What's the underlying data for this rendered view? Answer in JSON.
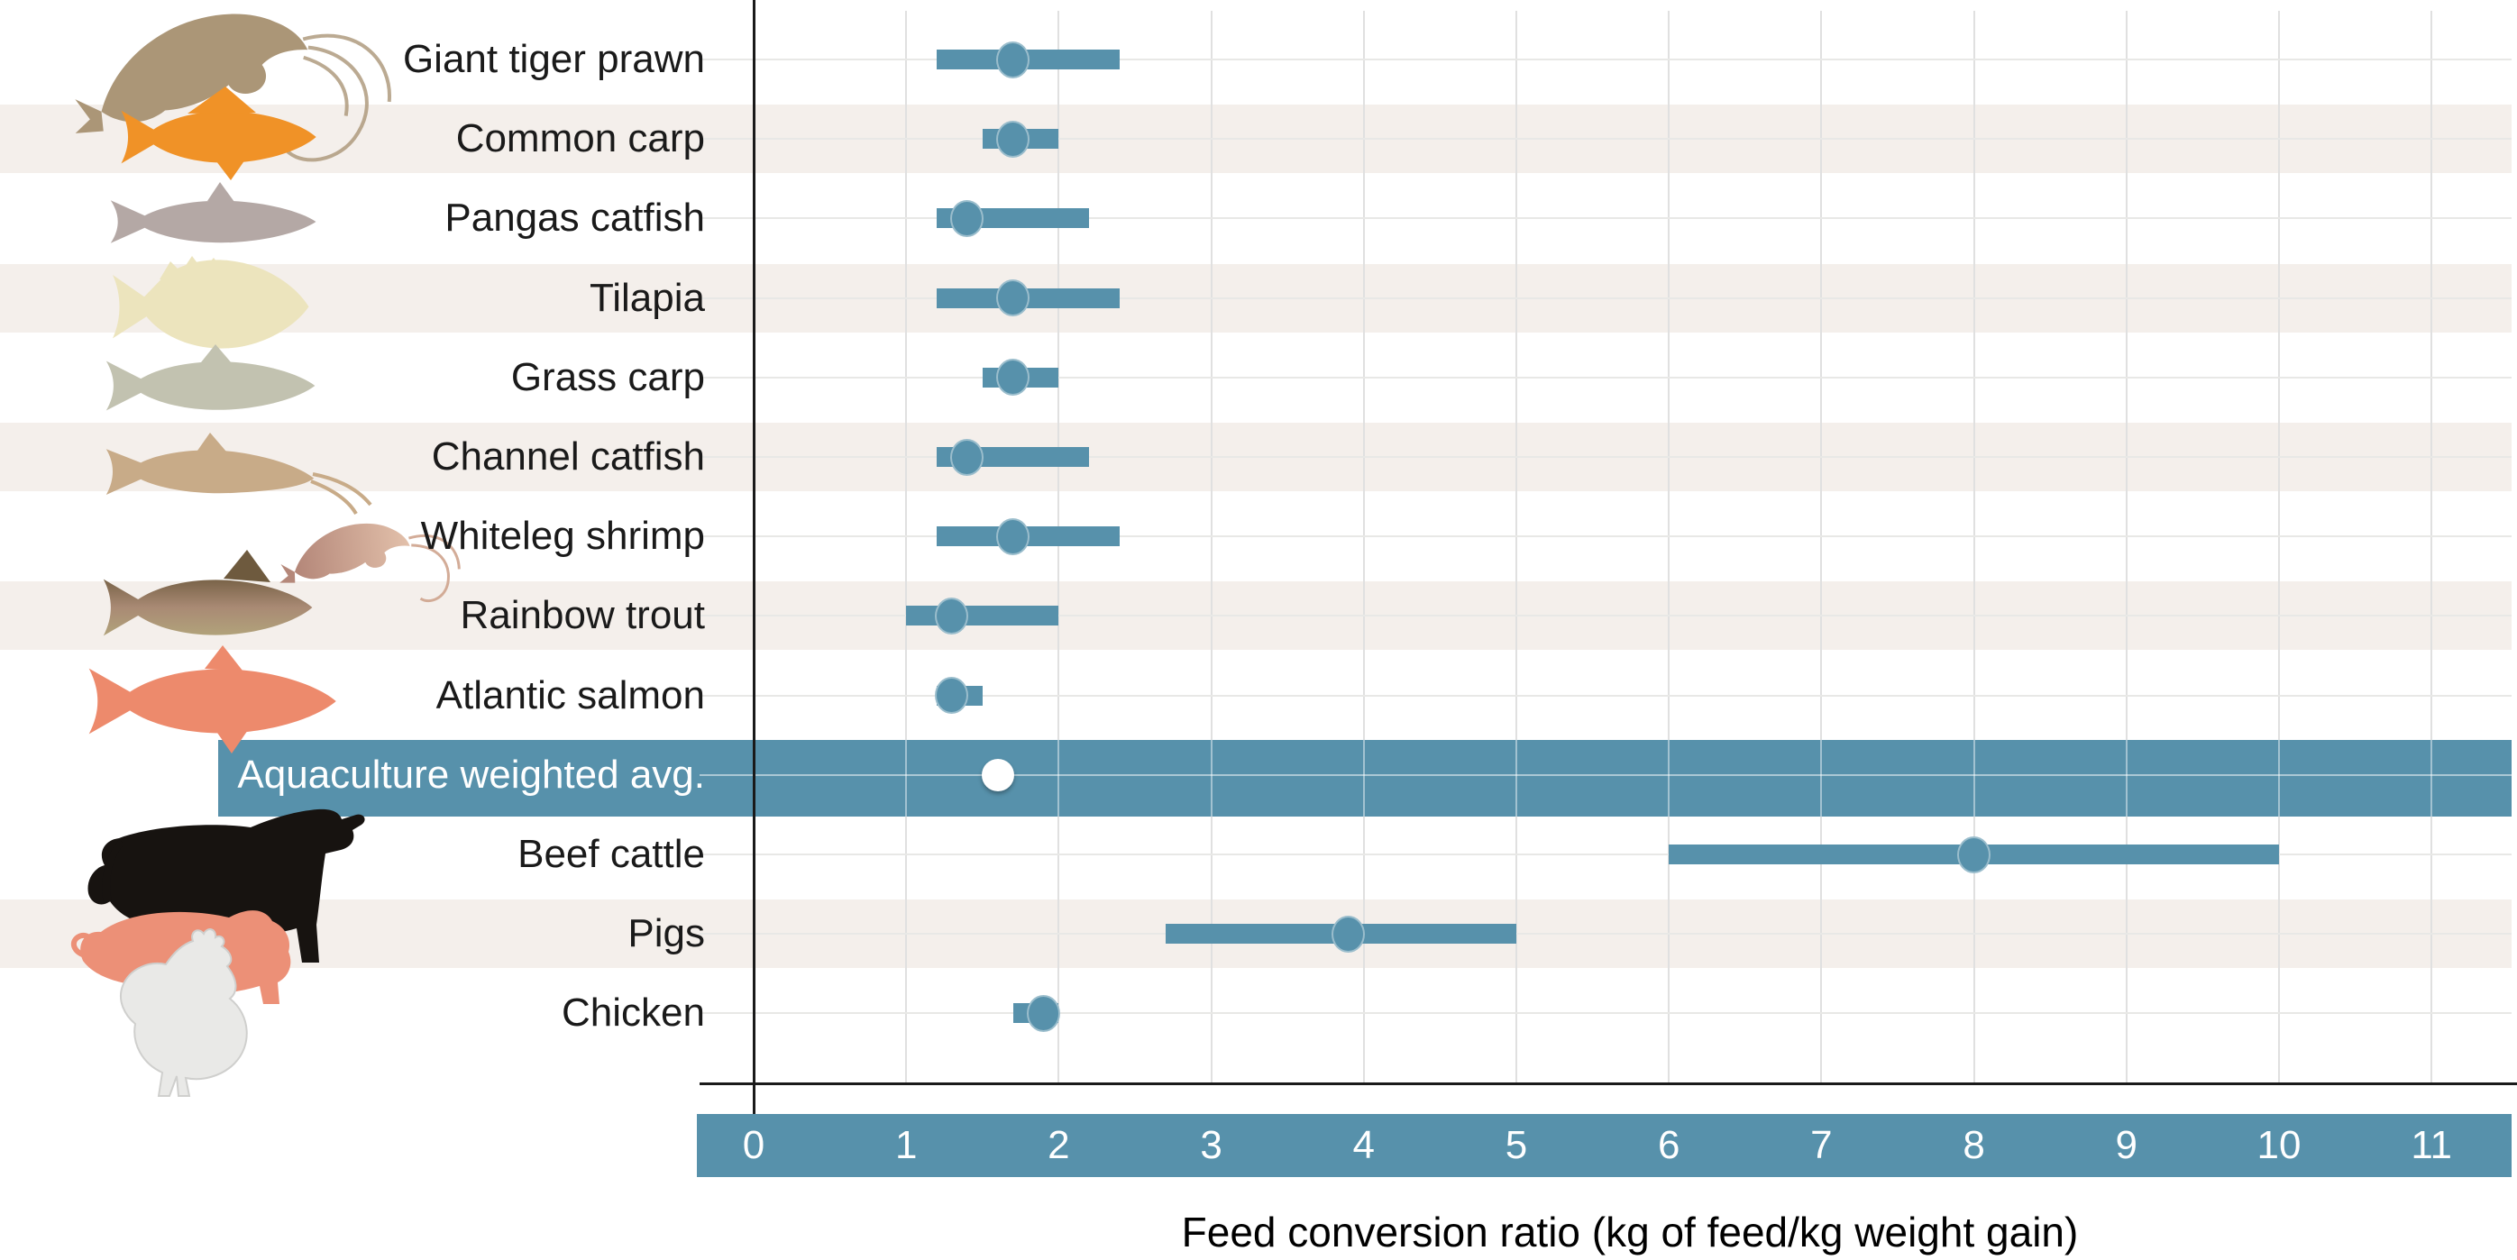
{
  "colors": {
    "accent_blue": "#5791ab",
    "stripe_bg": "#f4efeb",
    "grid_line": "#e0e0e0",
    "row_line": "#e8e8e6",
    "axis_line": "#1a1a1a",
    "label_text": "#1a1a1a",
    "band_label_text": "#ffffff",
    "tick_text": "#ffffff",
    "summary_dot": "#ffffff",
    "animal_colors": {
      "giant_tiger_prawn": "#ab9677",
      "common_carp": "#f09227",
      "pangas_catfish": "#b4a8a5",
      "tilapia": "#ece4bd",
      "grass_carp": "#c2c2b0",
      "channel_catfish": "#c8ab88",
      "whiteleg_shrimp": "#d4a38c",
      "rainbow_trout": "#a1875f",
      "atlantic_salmon": "#ed8a6c",
      "beef_cattle": "#171310",
      "pig": "#ec9077",
      "chicken": "#e9e9e7"
    }
  },
  "axis": {
    "tick_labels": [
      "0",
      "1",
      "2",
      "3",
      "4",
      "5",
      "6",
      "7",
      "8",
      "9",
      "10",
      "11"
    ],
    "xlabel": "Feed conversion ratio (kg of feed/kg weight gain)"
  },
  "chart_data": {
    "type": "dot-range",
    "title": "",
    "xlabel": "Feed conversion ratio (kg of feed/kg weight gain)",
    "ylabel": "",
    "x_ticks": [
      0,
      1,
      2,
      3,
      4,
      5,
      6,
      7,
      8,
      9,
      10,
      11
    ],
    "xlim": [
      -0.4,
      11.5
    ],
    "grid": "vertical gridlines at each integer; light horizontal line per row",
    "legend_position": "none",
    "rows": [
      {
        "label": "Giant tiger prawn",
        "range_min": 1.2,
        "range_max": 2.4,
        "point": 1.7,
        "striped": false,
        "animal_icon": "giant-tiger-prawn-icon"
      },
      {
        "label": "Common carp",
        "range_min": 1.5,
        "range_max": 2.0,
        "point": 1.7,
        "striped": true,
        "animal_icon": "common-carp-icon"
      },
      {
        "label": "Pangas catfish",
        "range_min": 1.2,
        "range_max": 2.2,
        "point": 1.4,
        "striped": false,
        "animal_icon": "pangas-catfish-icon"
      },
      {
        "label": "Tilapia",
        "range_min": 1.2,
        "range_max": 2.4,
        "point": 1.7,
        "striped": true,
        "animal_icon": "tilapia-icon"
      },
      {
        "label": "Grass carp",
        "range_min": 1.5,
        "range_max": 2.0,
        "point": 1.7,
        "striped": false,
        "animal_icon": "grass-carp-icon"
      },
      {
        "label": "Channel catfish",
        "range_min": 1.2,
        "range_max": 2.2,
        "point": 1.4,
        "striped": true,
        "animal_icon": "channel-catfish-icon"
      },
      {
        "label": "Whiteleg shrimp",
        "range_min": 1.2,
        "range_max": 2.4,
        "point": 1.7,
        "striped": false,
        "animal_icon": "whiteleg-shrimp-icon"
      },
      {
        "label": "Rainbow trout",
        "range_min": 1.0,
        "range_max": 2.0,
        "point": 1.3,
        "striped": true,
        "animal_icon": "rainbow-trout-icon"
      },
      {
        "label": "Atlantic salmon",
        "range_min": 1.2,
        "range_max": 1.5,
        "point": 1.3,
        "striped": false,
        "animal_icon": "atlantic-salmon-icon"
      },
      {
        "label": "Aquaculture weighted avg.",
        "point": 1.6,
        "summary": true,
        "band_full_width": true,
        "striped": false,
        "animal_icon": ""
      },
      {
        "label": "Beef cattle",
        "range_min": 6.0,
        "range_max": 10.0,
        "point": 8.0,
        "striped": false,
        "animal_icon": "beef-cattle-icon"
      },
      {
        "label": "Pigs",
        "range_min": 2.7,
        "range_max": 5.0,
        "point": 3.9,
        "striped": true,
        "animal_icon": "pig-icon"
      },
      {
        "label": "Chicken",
        "range_min": 1.7,
        "range_max": 2.0,
        "point": 1.9,
        "striped": false,
        "animal_icon": "chicken-icon"
      }
    ]
  }
}
